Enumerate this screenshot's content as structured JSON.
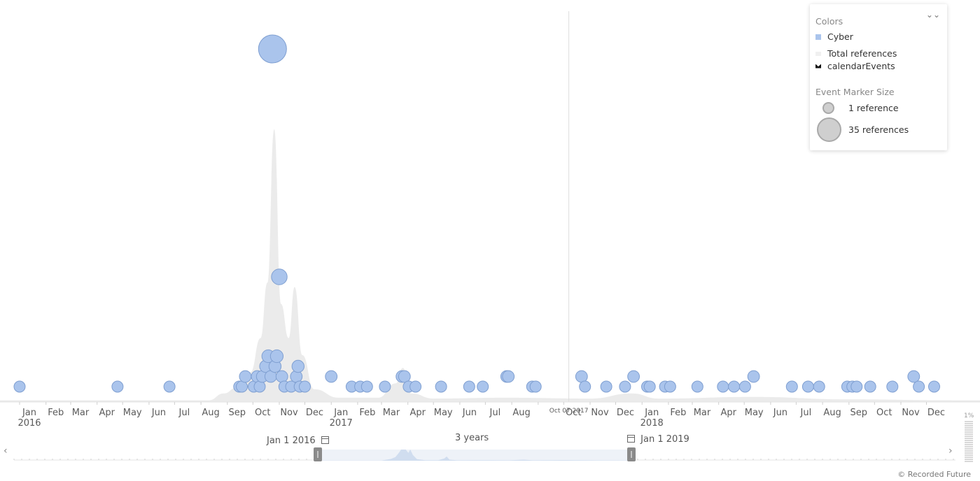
{
  "colors": {
    "cyber": "#aac4ec",
    "cyber_stroke": "#7f9fd1",
    "total_refs_area": "#ebebeb",
    "calendar_events": "#111111",
    "today_line": "#dddddd",
    "size_circle": "#cfcfcf"
  },
  "legend": {
    "colors_heading": "Colors",
    "items": [
      {
        "label": "Cyber",
        "icon": "square-swatch"
      },
      {
        "label": "Total references",
        "icon": "area-swatch"
      },
      {
        "label": "calendarEvents",
        "icon": "calendar-swatch"
      }
    ],
    "size_heading": "Event Marker Size",
    "size_items": [
      {
        "label": "1 reference"
      },
      {
        "label": "35 references"
      }
    ],
    "collapse_icon": "double-chevron-down-icon"
  },
  "axis": {
    "months": [
      "Jan",
      "Feb",
      "Mar",
      "Apr",
      "May",
      "Jun",
      "Jul",
      "Aug",
      "Sep",
      "Oct",
      "Nov",
      "Dec",
      "Jan",
      "Feb",
      "Mar",
      "Apr",
      "May",
      "Jun",
      "Jul",
      "Aug",
      "Sep",
      "Oct",
      "Nov",
      "Dec",
      "Jan",
      "Feb",
      "Mar",
      "Apr",
      "May",
      "Jun",
      "Jul",
      "Aug",
      "Sep",
      "Oct",
      "Nov",
      "Dec"
    ],
    "years": [
      "2016",
      "2017",
      "2018"
    ],
    "today_label": "Oct 07 2017"
  },
  "navigator": {
    "start_label": "Jan 1 2016",
    "end_label": "Jan 1 2019",
    "span_label": "3 years",
    "left_arrow": "‹",
    "right_arrow": "›",
    "pct_label": "1%"
  },
  "copyright": "© Recorded Future",
  "chart_data": {
    "type": "scatter",
    "x_axis": "date",
    "x_range": [
      "2016-01-01",
      "2019-01-01"
    ],
    "today": "2017-10-07",
    "series": [
      {
        "name": "Cyber",
        "points": [
          {
            "date": "2016-01-01",
            "refs": 1
          },
          {
            "date": "2016-04-25",
            "refs": 1
          },
          {
            "date": "2016-06-25",
            "refs": 1
          },
          {
            "date": "2016-09-15",
            "refs": 1
          },
          {
            "date": "2016-09-18",
            "refs": 1
          },
          {
            "date": "2016-09-22",
            "refs": 2
          },
          {
            "date": "2016-10-02",
            "refs": 1
          },
          {
            "date": "2016-10-06",
            "refs": 2
          },
          {
            "date": "2016-10-09",
            "refs": 1
          },
          {
            "date": "2016-10-12",
            "refs": 2
          },
          {
            "date": "2016-10-16",
            "refs": 3
          },
          {
            "date": "2016-10-19",
            "refs": 4
          },
          {
            "date": "2016-10-22",
            "refs": 2
          },
          {
            "date": "2016-10-24",
            "refs": 35
          },
          {
            "date": "2016-10-27",
            "refs": 3
          },
          {
            "date": "2016-10-29",
            "refs": 4
          },
          {
            "date": "2016-11-01",
            "refs": 10
          },
          {
            "date": "2016-11-04",
            "refs": 2
          },
          {
            "date": "2016-11-07",
            "refs": 1
          },
          {
            "date": "2016-11-15",
            "refs": 1
          },
          {
            "date": "2016-11-21",
            "refs": 2
          },
          {
            "date": "2016-11-23",
            "refs": 3
          },
          {
            "date": "2016-11-25",
            "refs": 1
          },
          {
            "date": "2016-12-01",
            "refs": 1
          },
          {
            "date": "2017-01-01",
            "refs": 2
          },
          {
            "date": "2017-01-25",
            "refs": 1
          },
          {
            "date": "2017-02-04",
            "refs": 1
          },
          {
            "date": "2017-02-12",
            "refs": 1
          },
          {
            "date": "2017-03-05",
            "refs": 1
          },
          {
            "date": "2017-03-25",
            "refs": 2
          },
          {
            "date": "2017-03-28",
            "refs": 2
          },
          {
            "date": "2017-04-02",
            "refs": 1
          },
          {
            "date": "2017-04-10",
            "refs": 1
          },
          {
            "date": "2017-05-10",
            "refs": 1
          },
          {
            "date": "2017-06-12",
            "refs": 1
          },
          {
            "date": "2017-06-28",
            "refs": 1
          },
          {
            "date": "2017-07-26",
            "refs": 2
          },
          {
            "date": "2017-07-28",
            "refs": 2
          },
          {
            "date": "2017-08-25",
            "refs": 1
          },
          {
            "date": "2017-08-29",
            "refs": 1
          },
          {
            "date": "2017-10-22",
            "refs": 2
          },
          {
            "date": "2017-10-26",
            "refs": 1
          },
          {
            "date": "2017-11-20",
            "refs": 1
          },
          {
            "date": "2017-12-12",
            "refs": 1
          },
          {
            "date": "2017-12-22",
            "refs": 2
          },
          {
            "date": "2018-01-07",
            "refs": 1
          },
          {
            "date": "2018-01-10",
            "refs": 1
          },
          {
            "date": "2018-01-28",
            "refs": 1
          },
          {
            "date": "2018-02-03",
            "refs": 1
          },
          {
            "date": "2018-03-07",
            "refs": 1
          },
          {
            "date": "2018-04-06",
            "refs": 1
          },
          {
            "date": "2018-04-19",
            "refs": 1
          },
          {
            "date": "2018-05-02",
            "refs": 1
          },
          {
            "date": "2018-05-12",
            "refs": 2
          },
          {
            "date": "2018-06-26",
            "refs": 1
          },
          {
            "date": "2018-07-15",
            "refs": 1
          },
          {
            "date": "2018-07-28",
            "refs": 1
          },
          {
            "date": "2018-08-30",
            "refs": 1
          },
          {
            "date": "2018-09-05",
            "refs": 1
          },
          {
            "date": "2018-09-10",
            "refs": 1
          },
          {
            "date": "2018-09-26",
            "refs": 1
          },
          {
            "date": "2018-10-22",
            "refs": 1
          },
          {
            "date": "2018-11-16",
            "refs": 2
          },
          {
            "date": "2018-11-22",
            "refs": 1
          },
          {
            "date": "2018-12-10",
            "refs": 1
          }
        ]
      },
      {
        "name": "Total references",
        "type": "area",
        "points": [
          {
            "date": "2016-01-01",
            "v": 2
          },
          {
            "date": "2016-04-01",
            "v": 2
          },
          {
            "date": "2016-08-10",
            "v": 2
          },
          {
            "date": "2016-08-28",
            "v": 10
          },
          {
            "date": "2016-09-12",
            "v": 17
          },
          {
            "date": "2016-09-28",
            "v": 35
          },
          {
            "date": "2016-10-10",
            "v": 75
          },
          {
            "date": "2016-10-18",
            "v": 140
          },
          {
            "date": "2016-10-26",
            "v": 320
          },
          {
            "date": "2016-11-03",
            "v": 115
          },
          {
            "date": "2016-11-12",
            "v": 75
          },
          {
            "date": "2016-11-19",
            "v": 135
          },
          {
            "date": "2016-11-28",
            "v": 55
          },
          {
            "date": "2016-12-12",
            "v": 15
          },
          {
            "date": "2017-01-10",
            "v": 5
          },
          {
            "date": "2017-02-25",
            "v": 5
          },
          {
            "date": "2017-03-18",
            "v": 22
          },
          {
            "date": "2017-03-26",
            "v": 40
          },
          {
            "date": "2017-04-05",
            "v": 10
          },
          {
            "date": "2017-05-01",
            "v": 4
          },
          {
            "date": "2017-07-25",
            "v": 5
          },
          {
            "date": "2017-11-01",
            "v": 4
          },
          {
            "date": "2017-12-20",
            "v": 10
          },
          {
            "date": "2018-01-20",
            "v": 4
          },
          {
            "date": "2018-05-12",
            "v": 6
          },
          {
            "date": "2018-09-01",
            "v": 3
          },
          {
            "date": "2019-01-01",
            "v": 2
          }
        ]
      }
    ]
  }
}
